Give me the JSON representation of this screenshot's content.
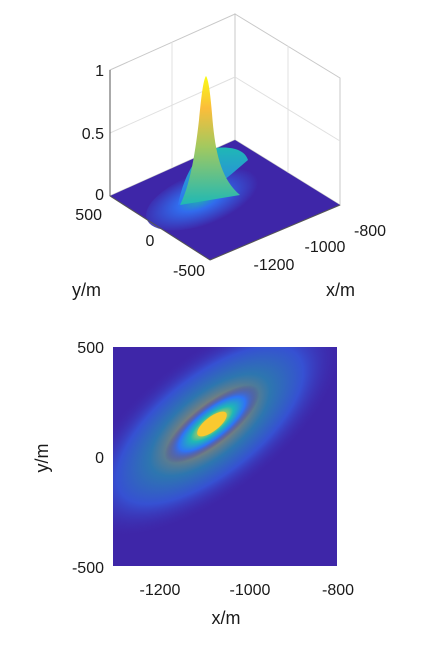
{
  "chart_data": [
    {
      "type": "surface",
      "xlabel": "x/m",
      "ylabel": "y/m",
      "zlabel": "",
      "x_ticks": [
        "-1200",
        "-1000",
        "-800"
      ],
      "y_ticks": [
        "500",
        "0",
        "-500"
      ],
      "z_ticks": [
        "1",
        "0.5",
        "0"
      ],
      "xlim": [
        -1300,
        -800
      ],
      "ylim": [
        -500,
        500
      ],
      "zlim": [
        0,
        1
      ],
      "peak": {
        "x": -1070,
        "y": 100,
        "z": 1.0
      },
      "colormap": [
        "#3e26a8",
        "#2f74f5",
        "#1fb8b5",
        "#a2c95f",
        "#fbbd3a",
        "#f9fb15"
      ],
      "grid": true
    },
    {
      "type": "heatmap",
      "xlabel": "x/m",
      "ylabel": "y/m",
      "x_ticks": [
        "-1200",
        "-1000",
        "-800"
      ],
      "y_ticks": [
        "500",
        "0",
        "-500"
      ],
      "xlim": [
        -1300,
        -800
      ],
      "ylim": [
        -500,
        500
      ],
      "peak": {
        "x": -1070,
        "y": 70,
        "z": 1.0
      },
      "orientation_deg": 38,
      "colormap": [
        "#3e26a8",
        "#2f74f5",
        "#1fb8b5",
        "#a2c95f",
        "#fbbd3a",
        "#f9fb15"
      ]
    }
  ]
}
